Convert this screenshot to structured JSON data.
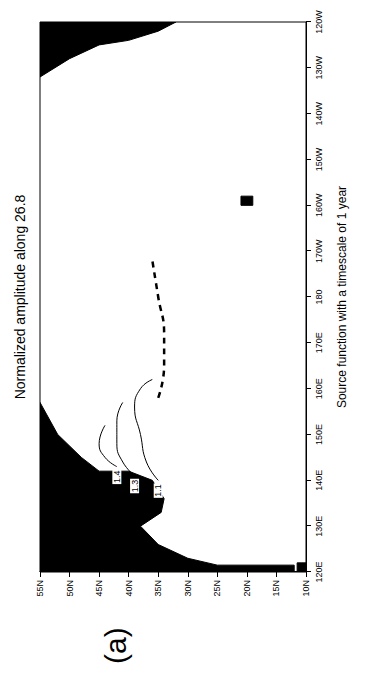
{
  "chart_data": {
    "type": "contour_map",
    "title": "Normalized amplitude along 26.8",
    "xlabel": "Source function with a timescale of 1 year",
    "panel": "(a)",
    "xlim": [
      120,
      240
    ],
    "xticks": [
      {
        "value": 120,
        "label": "120E"
      },
      {
        "value": 130,
        "label": "130E"
      },
      {
        "value": 140,
        "label": "140E"
      },
      {
        "value": 150,
        "label": "150E"
      },
      {
        "value": 160,
        "label": "160E"
      },
      {
        "value": 170,
        "label": "170E"
      },
      {
        "value": 180,
        "label": "180"
      },
      {
        "value": 190,
        "label": "170W"
      },
      {
        "value": 200,
        "label": "160W"
      },
      {
        "value": 210,
        "label": "150W"
      },
      {
        "value": 220,
        "label": "140W"
      },
      {
        "value": 230,
        "label": "130W"
      },
      {
        "value": 240,
        "label": "120W"
      }
    ],
    "ylim": [
      10,
      55
    ],
    "yticks": [
      {
        "value": 10,
        "label": "10N"
      },
      {
        "value": 15,
        "label": "15N"
      },
      {
        "value": 20,
        "label": "20N"
      },
      {
        "value": 25,
        "label": "25N"
      },
      {
        "value": 30,
        "label": "30N"
      },
      {
        "value": 35,
        "label": "35N"
      },
      {
        "value": 40,
        "label": "40N"
      },
      {
        "value": 45,
        "label": "45N"
      },
      {
        "value": 50,
        "label": "50N"
      },
      {
        "value": 55,
        "label": "55N"
      }
    ],
    "grid": false,
    "land": {
      "color": "#000000",
      "polygons": [
        [
          [
            120,
            12
          ],
          [
            121.5,
            12
          ],
          [
            121.5,
            25
          ],
          [
            123,
            30
          ],
          [
            126,
            35
          ],
          [
            130,
            38
          ],
          [
            133,
            34.5
          ],
          [
            136,
            34
          ],
          [
            140,
            36
          ],
          [
            142,
            40
          ],
          [
            142,
            45
          ],
          [
            145,
            48
          ],
          [
            150,
            52
          ],
          [
            157,
            55
          ],
          [
            120,
            55
          ]
        ],
        [
          [
            120,
            10
          ],
          [
            122,
            10
          ],
          [
            122,
            11.5
          ],
          [
            120,
            11.5
          ]
        ],
        [
          [
            240,
            55
          ],
          [
            228,
            55
          ],
          [
            232,
            50
          ],
          [
            235,
            45
          ],
          [
            236,
            40
          ],
          [
            238,
            35
          ],
          [
            240,
            32
          ]
        ],
        [
          [
            200,
            19
          ],
          [
            202,
            19
          ],
          [
            202,
            21
          ],
          [
            200,
            21
          ]
        ]
      ]
    },
    "series": [
      {
        "label": "1.4",
        "color": "#000000",
        "line_style": "solid",
        "values": [
          [
            143,
            42
          ],
          [
            145,
            44
          ],
          [
            148,
            45
          ],
          [
            152,
            44
          ]
        ]
      },
      {
        "label": "1.3",
        "color": "#000000",
        "line_style": "solid",
        "values": [
          [
            141,
            39
          ],
          [
            144,
            41
          ],
          [
            148,
            42
          ],
          [
            153,
            42
          ],
          [
            157,
            41
          ]
        ]
      },
      {
        "label": "1.1",
        "color": "#000000",
        "line_style": "solid",
        "values": [
          [
            140,
            35
          ],
          [
            144,
            37
          ],
          [
            150,
            38
          ],
          [
            156,
            39
          ],
          [
            160,
            38
          ],
          [
            162,
            36
          ]
        ]
      },
      {
        "color": "#000000",
        "line_style": "dashed",
        "values": [
          [
            158,
            35
          ],
          [
            165,
            34
          ],
          [
            172,
            34
          ],
          [
            180,
            35
          ],
          [
            188,
            36
          ]
        ]
      }
    ]
  }
}
